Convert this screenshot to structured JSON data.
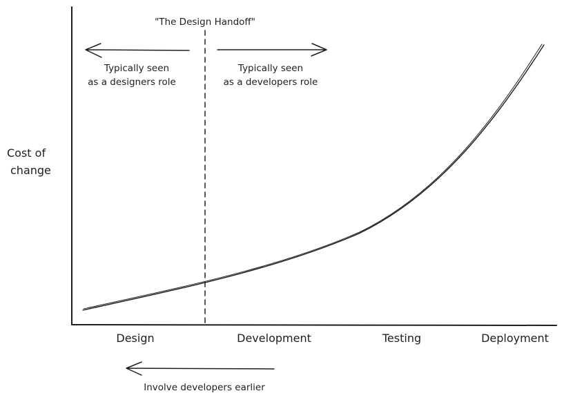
{
  "diagram": {
    "y_axis_label": [
      "Cost of",
      "change"
    ],
    "handoff_label": "\"The Design Handoff\"",
    "left_note": [
      "Typically seen",
      "as a designers role"
    ],
    "right_note": [
      "Typically seen",
      "as a developers role"
    ],
    "bottom_note": "Involve developers earlier",
    "stages": [
      "Design",
      "Development",
      "Testing",
      "Deployment"
    ]
  },
  "colors": {
    "ink": "#1e1e1e",
    "background": "#ffffff"
  }
}
